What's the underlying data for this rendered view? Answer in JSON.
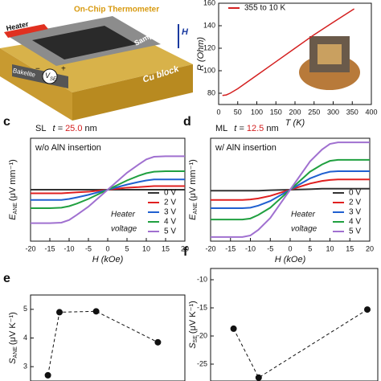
{
  "diagram": {
    "labels": [
      "Heater",
      "On-Chip Thermometer",
      "Sample",
      "Cu block",
      "Bakelite",
      "V",
      "SE",
      "+",
      "−",
      "H"
    ]
  },
  "chart_data": [
    {
      "type": "line",
      "x_label": "T (K)",
      "y_label": "R (Ohm)",
      "xlim": [
        0,
        400
      ],
      "xticks": [
        0,
        50,
        100,
        150,
        200,
        250,
        300,
        350,
        400
      ],
      "ylim": [
        70,
        160
      ],
      "yticks": [
        80,
        100,
        120,
        140,
        160
      ],
      "x": [
        10,
        20,
        30,
        50,
        100,
        150,
        200,
        250,
        300,
        355
      ],
      "series": [
        {
          "name": "355 to 10 K",
          "color": "#d42020",
          "values": [
            78,
            78.5,
            80,
            84,
            96,
            108,
            120,
            132,
            143,
            155
          ]
        }
      ]
    },
    {
      "type": "line",
      "label": "c",
      "text": [
        "SL",
        "t = ",
        "25.0",
        " nm"
      ],
      "subtext": "w/o AlN insertion",
      "annotation": [
        "Heater",
        "voltage"
      ],
      "x_label": "H (kOe)",
      "y_label": {
        "symbol": "E",
        "subscript": "ANE",
        "unit": "(μV mm⁻¹)"
      },
      "xlim": [
        -20,
        20
      ],
      "xticks": [
        -20,
        -15,
        -10,
        -5,
        0,
        5,
        10,
        15,
        20
      ],
      "ylim": [
        -1,
        1
      ],
      "x": [
        -20,
        -15,
        -12,
        -10,
        -8,
        -5,
        0,
        5,
        8,
        10,
        12,
        15,
        20
      ],
      "series": [
        {
          "name": "0 V",
          "color": "#333333",
          "values": [
            0,
            0,
            0,
            0,
            0,
            0,
            0,
            0,
            0,
            0,
            0,
            0,
            0
          ]
        },
        {
          "name": "2 V",
          "color": "#e02020",
          "values": [
            -0.07,
            -0.07,
            -0.07,
            -0.06,
            -0.05,
            -0.04,
            0,
            0.04,
            0.05,
            0.06,
            0.07,
            0.07,
            0.07
          ]
        },
        {
          "name": "3 V",
          "color": "#2060d0",
          "values": [
            -0.2,
            -0.2,
            -0.2,
            -0.18,
            -0.15,
            -0.1,
            0,
            0.1,
            0.15,
            0.18,
            0.2,
            0.2,
            0.2
          ]
        },
        {
          "name": "4 V",
          "color": "#20a040",
          "values": [
            -0.36,
            -0.36,
            -0.35,
            -0.32,
            -0.27,
            -0.18,
            0,
            0.18,
            0.27,
            0.32,
            0.35,
            0.36,
            0.36
          ]
        },
        {
          "name": "5 V",
          "color": "#a070d0",
          "values": [
            -0.65,
            -0.65,
            -0.64,
            -0.59,
            -0.49,
            -0.33,
            0,
            0.33,
            0.49,
            0.59,
            0.64,
            0.65,
            0.65
          ]
        }
      ]
    },
    {
      "type": "line",
      "label": "d",
      "text": [
        "ML",
        "t = ",
        "12.5",
        " nm"
      ],
      "subtext": "w/ AlN insertion",
      "annotation": [
        "Heater",
        "voltage"
      ],
      "x_label": "H (kOe)",
      "y_label": {
        "symbol": "E",
        "subscript": "ANE",
        "unit": "(μV mm⁻¹)"
      },
      "xlim": [
        -20,
        20
      ],
      "xticks": [
        -20,
        -15,
        -10,
        -5,
        0,
        5,
        10,
        15,
        20
      ],
      "ylim": [
        -1,
        1
      ],
      "x": [
        -20,
        -15,
        -12,
        -10,
        -8,
        -5,
        0,
        5,
        8,
        10,
        12,
        15,
        20
      ],
      "series": [
        {
          "name": "0 V",
          "color": "#333333",
          "values": [
            -0.02,
            -0.02,
            -0.02,
            -0.02,
            -0.02,
            -0.01,
            0,
            0.01,
            0.02,
            0.02,
            0.02,
            0.02,
            0.02
          ]
        },
        {
          "name": "2 V",
          "color": "#e02020",
          "values": [
            -0.2,
            -0.2,
            -0.2,
            -0.19,
            -0.17,
            -0.12,
            0,
            0.12,
            0.17,
            0.19,
            0.2,
            0.2,
            0.2
          ]
        },
        {
          "name": "3 V",
          "color": "#2060d0",
          "values": [
            -0.36,
            -0.36,
            -0.36,
            -0.35,
            -0.31,
            -0.22,
            0,
            0.22,
            0.31,
            0.35,
            0.36,
            0.36,
            0.36
          ]
        },
        {
          "name": "4 V",
          "color": "#20a040",
          "values": [
            -0.58,
            -0.58,
            -0.58,
            -0.56,
            -0.49,
            -0.35,
            0,
            0.35,
            0.49,
            0.56,
            0.58,
            0.58,
            0.58
          ]
        },
        {
          "name": "5 V",
          "color": "#a070d0",
          "values": [
            -0.92,
            -0.92,
            -0.92,
            -0.89,
            -0.78,
            -0.55,
            0,
            0.55,
            0.78,
            0.89,
            0.92,
            0.92,
            0.92
          ]
        }
      ]
    },
    {
      "type": "scatter",
      "label": "e",
      "y_label": {
        "symbol": "S",
        "subscript": "ANE",
        "unit": "(μV K⁻¹)"
      },
      "xlim": [
        0,
        8
      ],
      "ylim": [
        2.5,
        5.5
      ],
      "yticks": [
        3,
        4,
        5
      ],
      "x": [
        0.9,
        1.5,
        3.4,
        6.6
      ],
      "values": [
        2.7,
        4.9,
        4.93,
        3.85
      ],
      "color": "#111111"
    },
    {
      "type": "scatter",
      "label": "f",
      "y_label": {
        "symbol": "S",
        "subscript": "SE",
        "unit": "(μV K⁻¹)"
      },
      "xlim": [
        0,
        8
      ],
      "ylim": [
        -28,
        -8
      ],
      "yticks": [
        -25,
        -20,
        -15,
        -10
      ],
      "x": [
        1.1,
        2.3,
        7.5
      ],
      "values": [
        -18.7,
        -27.4,
        -15.3
      ],
      "color": "#111111"
    }
  ]
}
